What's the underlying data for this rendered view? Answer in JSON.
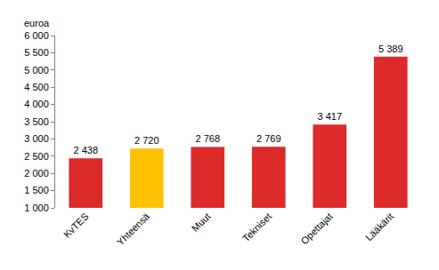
{
  "chart_data": {
    "type": "bar",
    "ylabel": "euroa",
    "categories": [
      "KvTES",
      "Yhteensä",
      "Muut",
      "Tekniset",
      "Opettajat",
      "Lääkärit"
    ],
    "values": [
      2438,
      2720,
      2768,
      2769,
      3417,
      5389
    ],
    "value_labels": [
      "2 438",
      "2 720",
      "2 768",
      "2 769",
      "3 417",
      "5 389"
    ],
    "data_labels": true,
    "colors": [
      "#dd2a2a",
      "#ffc000",
      "#dd2a2a",
      "#dd2a2a",
      "#dd2a2a",
      "#dd2a2a"
    ],
    "ylim": [
      1000,
      6000
    ],
    "yticks": [
      {
        "value": 1000,
        "label": "1 000"
      },
      {
        "value": 1500,
        "label": "1 500"
      },
      {
        "value": 2000,
        "label": "2 000"
      },
      {
        "value": 2500,
        "label": "2 500"
      },
      {
        "value": 3000,
        "label": "3 000"
      },
      {
        "value": 3500,
        "label": "3 500"
      },
      {
        "value": 4000,
        "label": "4 000"
      },
      {
        "value": 4500,
        "label": "4 500"
      },
      {
        "value": 5000,
        "label": "5 000"
      },
      {
        "value": 5500,
        "label": "5 500"
      },
      {
        "value": 6000,
        "label": "6 000"
      }
    ],
    "grid": false
  }
}
